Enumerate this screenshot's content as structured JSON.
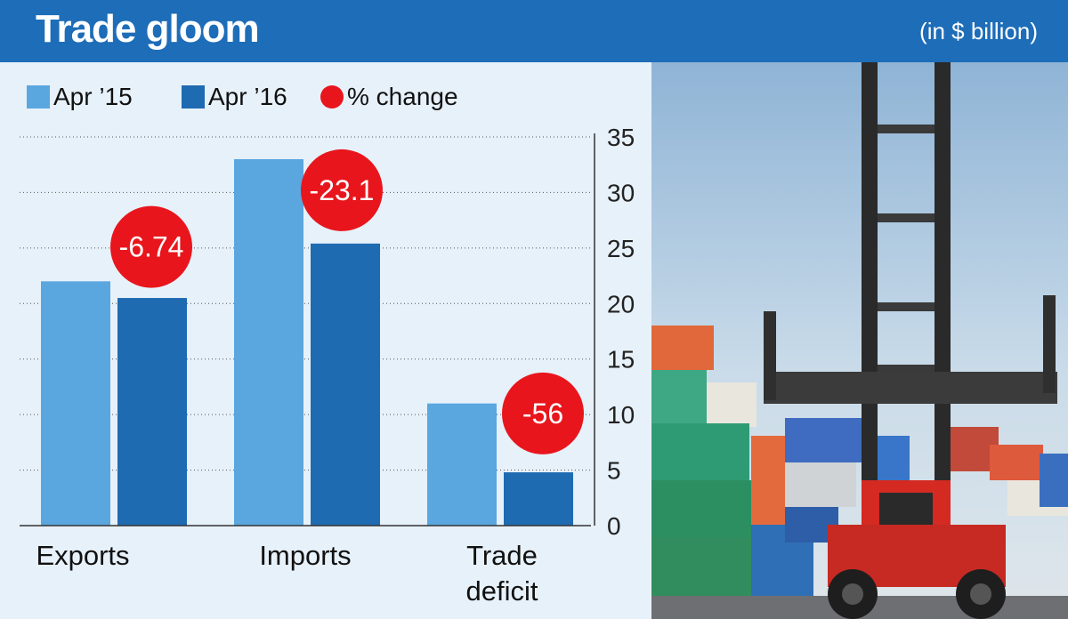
{
  "header": {
    "title": "Trade gloom",
    "unit": "(in $ billion)"
  },
  "colors": {
    "header_bg": "#1d6db8",
    "apr15": "#5aa6df",
    "apr16": "#1f6bb1",
    "change": "#e8161c",
    "panel_bg": "#e7f1fa"
  },
  "legend": {
    "apr15_label": "Apr ’15",
    "apr16_label": "Apr ’16",
    "change_label": "% change"
  },
  "photo": {
    "icon": "container-handler-photo"
  },
  "chart_data": {
    "type": "bar",
    "categories": [
      {
        "lines": [
          "Exports"
        ]
      },
      {
        "lines": [
          "Imports"
        ]
      },
      {
        "lines": [
          "Trade",
          "deficit"
        ]
      }
    ],
    "series": [
      {
        "name": "Apr ’15",
        "values": [
          22.0,
          33.0,
          11.0
        ]
      },
      {
        "name": "Apr ’16",
        "values": [
          20.5,
          25.4,
          4.8
        ]
      }
    ],
    "pct_change": [
      -6.74,
      -23.1,
      -56
    ],
    "pct_change_labels": [
      "-6.74",
      "-23.1",
      "-56"
    ],
    "ylim": [
      0,
      35
    ],
    "yticks": [
      0,
      5,
      10,
      15,
      20,
      25,
      30,
      35
    ],
    "axis_position": "right",
    "grid": true
  }
}
